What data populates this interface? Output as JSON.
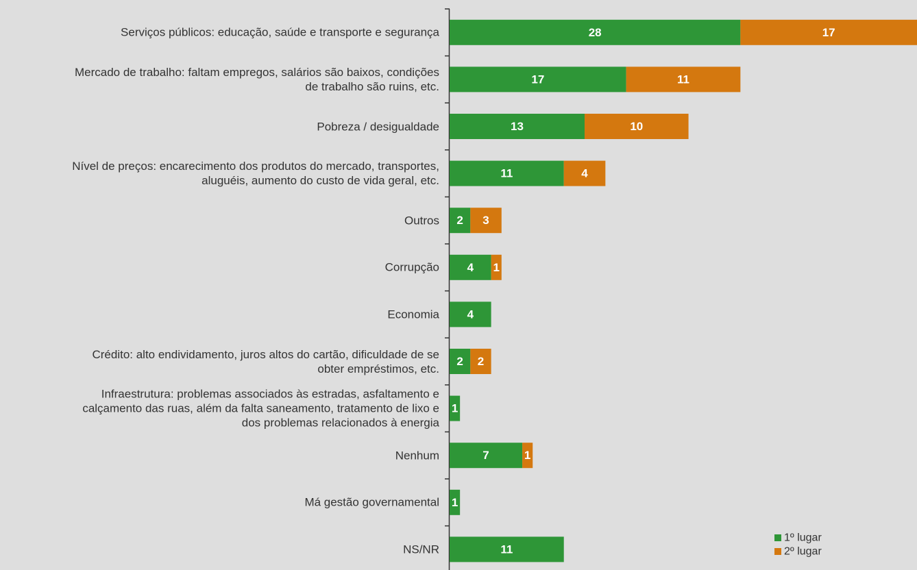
{
  "chart_data": {
    "type": "stacked-bar-horizontal",
    "categories": [
      "Serviços públicos: educação, saúde e transporte e segurança",
      "Mercado de trabalho: faltam empregos, salários são baixos, condições\nde trabalho são ruins, etc.",
      "Pobreza / desigualdade",
      "Nível de preços: encarecimento dos produtos do mercado, transportes,\naluguéis, aumento do custo de vida geral, etc.",
      "Outros",
      "Corrupção",
      "Economia",
      "Crédito: alto endividamento, juros altos do cartão, dificuldade de se\nobter empréstimos, etc.",
      "Infraestrutura: problemas associados às estradas, asfaltamento e\ncalçamento das ruas, além da falta saneamento, tratamento de lixo e\ndos problemas relacionados à energia",
      "Nenhum",
      "Má gestão governamental",
      "NS/NR"
    ],
    "series": [
      {
        "name": "1º lugar",
        "color": "#2e9637",
        "values": [
          28,
          17,
          13,
          11,
          2,
          4,
          4,
          2,
          1,
          7,
          1,
          11
        ]
      },
      {
        "name": "2º lugar",
        "color": "#d4780f",
        "values": [
          17,
          11,
          10,
          4,
          3,
          1,
          null,
          2,
          null,
          1,
          null,
          null
        ]
      }
    ],
    "xlim": [
      0,
      45
    ],
    "legend": "bottom-right"
  }
}
